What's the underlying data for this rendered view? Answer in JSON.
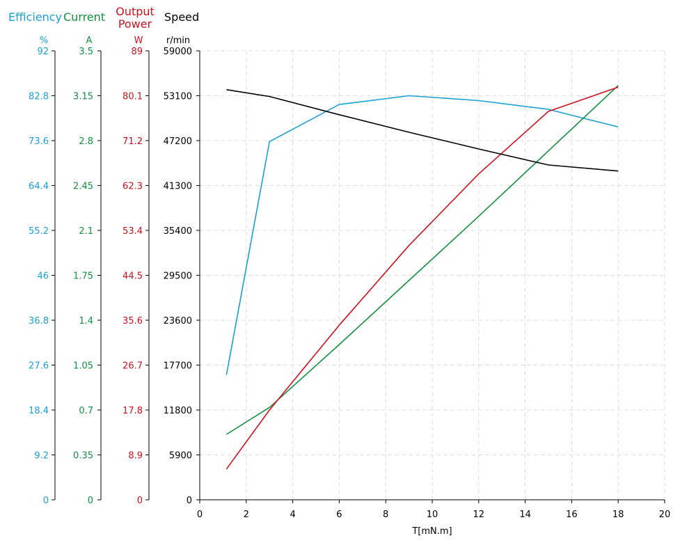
{
  "chart_data": {
    "type": "line",
    "legend": [
      {
        "label": "Efficiency",
        "color": "#1a9fd4"
      },
      {
        "label": "Current",
        "color": "#109040"
      },
      {
        "label": "Output\nPower",
        "color": "#d0101c"
      },
      {
        "label": "Speed",
        "color": "#000000"
      }
    ],
    "xlabel": "T[mN.m]",
    "xlim": [
      0,
      20
    ],
    "x_ticks": [
      "0",
      "2",
      "4",
      "6",
      "8",
      "10",
      "12",
      "14",
      "16",
      "18",
      "20"
    ],
    "axes": [
      {
        "key": "efficiency",
        "unit": "%",
        "color": "#1a9fd4",
        "ylim": [
          0,
          92
        ],
        "ticks": [
          "0",
          "9.2",
          "18.4",
          "27.6",
          "36.8",
          "46",
          "55.2",
          "64.4",
          "73.6",
          "82.8",
          "92"
        ]
      },
      {
        "key": "current",
        "unit": "A",
        "color": "#109040",
        "ylim": [
          0,
          3.5
        ],
        "ticks": [
          "0",
          "0.35",
          "0.7",
          "1.05",
          "1.4",
          "1.75",
          "2.1",
          "2.45",
          "2.8",
          "3.15",
          "3.5"
        ]
      },
      {
        "key": "power",
        "unit": "W",
        "color": "#d0101c",
        "ylim": [
          0,
          89
        ],
        "ticks": [
          "0",
          "8.9",
          "17.8",
          "26.7",
          "35.6",
          "44.5",
          "53.4",
          "62.3",
          "71.2",
          "80.1",
          "89"
        ]
      },
      {
        "key": "speed",
        "unit": "r/min",
        "color": "#000000",
        "ylim": [
          0,
          59000
        ],
        "ticks": [
          "0",
          "5900",
          "11800",
          "17700",
          "23600",
          "29500",
          "35400",
          "41300",
          "47200",
          "53100",
          "59000"
        ]
      }
    ],
    "grid": true,
    "series": [
      {
        "name": "Efficiency",
        "axis": "efficiency",
        "color": "#1a9fd4",
        "x": [
          1.15,
          3.0,
          6.0,
          9.0,
          12.0,
          15.0,
          18.0
        ],
        "y": [
          25.6,
          73.4,
          81.0,
          82.8,
          81.8,
          80.0,
          76.4
        ]
      },
      {
        "name": "Current",
        "axis": "current",
        "color": "#109040",
        "x": [
          1.15,
          3.0,
          6.0,
          9.0,
          12.0,
          15.0,
          18.0
        ],
        "y": [
          0.51,
          0.72,
          1.21,
          1.71,
          2.21,
          2.72,
          3.23
        ]
      },
      {
        "name": "Output Power",
        "axis": "power",
        "color": "#d0101c",
        "x": [
          1.15,
          3.0,
          6.0,
          9.0,
          12.0,
          15.0,
          18.0
        ],
        "y": [
          6.1,
          17.8,
          34.6,
          50.4,
          64.6,
          77.0,
          81.8
        ]
      },
      {
        "name": "Speed",
        "axis": "speed",
        "color": "#000000",
        "x": [
          1.15,
          3.0,
          6.0,
          9.0,
          12.0,
          15.0,
          18.0
        ],
        "y": [
          53900,
          53000,
          50600,
          48300,
          46100,
          44000,
          43200
        ]
      }
    ]
  }
}
